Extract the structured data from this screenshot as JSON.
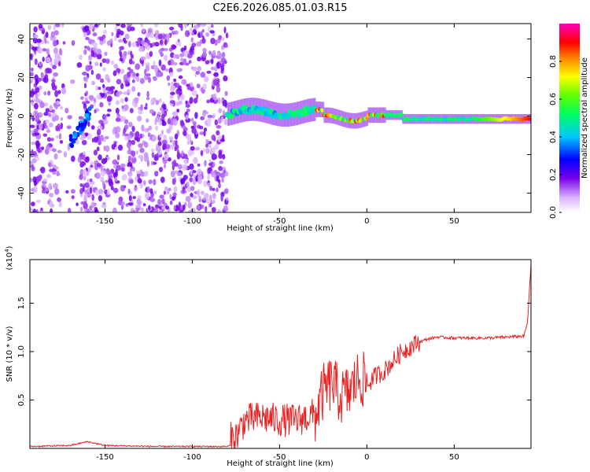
{
  "chart_data": [
    {
      "type": "heatmap",
      "title": "C2E6.2026.085.01.03.R15",
      "xlabel": "Height of straight line (km)",
      "ylabel": "Frequency (Hz)",
      "xlim": [
        -193,
        94
      ],
      "ylim": [
        -50,
        48
      ],
      "xticks": [
        -150,
        -100,
        -50,
        0,
        50
      ],
      "yticks": [
        -40,
        -20,
        0,
        20,
        40
      ],
      "colorbar": {
        "label": "Normalized spectral amplitude",
        "range": [
          0,
          1
        ],
        "ticks": [
          "0.0",
          "0.2",
          "0.4",
          "0.6",
          "0.8"
        ],
        "tick_values": [
          0.0,
          0.2,
          0.4,
          0.6,
          0.8
        ]
      },
      "ridge": {
        "description_points": [
          {
            "x": -168,
            "y": -13,
            "amp": 0.35
          },
          {
            "x": -160,
            "y": 2,
            "amp": 0.3
          },
          {
            "x": -75,
            "y": 2,
            "amp": 0.4
          },
          {
            "x": -50,
            "y": 3,
            "amp": 0.45
          },
          {
            "x": -25,
            "y": -2,
            "amp": 0.8
          },
          {
            "x": 0,
            "y": 1,
            "amp": 0.9
          },
          {
            "x": 10,
            "y": 0,
            "amp": 0.95
          },
          {
            "x": 50,
            "y": -2,
            "amp": 0.6
          },
          {
            "x": 90,
            "y": -2,
            "amp": 0.9
          }
        ]
      }
    },
    {
      "type": "line",
      "xlabel": "Height of straight line (km)",
      "ylabel": "SNR (10 * v/v)",
      "y_scale_label": "(x10",
      "y_scale_exp": "4",
      "y_scale_close": ")",
      "xlim": [
        -193,
        94
      ],
      "ylim": [
        0,
        1.95
      ],
      "xticks": [
        -150,
        -100,
        -50,
        0,
        50
      ],
      "yticks": [
        0.5,
        1.0,
        1.5
      ],
      "ytick_labels": [
        "0.5",
        "1.0",
        "1.5"
      ],
      "series": [
        {
          "name": "SNR",
          "color": "#e82020",
          "x": [
            -193,
            -170,
            -160,
            -150,
            -120,
            -100,
            -80,
            -75,
            -70,
            -60,
            -50,
            -40,
            -30,
            -25,
            -20,
            -15,
            -10,
            -5,
            0,
            5,
            10,
            15,
            20,
            25,
            30,
            35,
            40,
            50,
            60,
            70,
            80,
            90,
            92,
            94
          ],
          "y": [
            0.02,
            0.03,
            0.07,
            0.03,
            0.02,
            0.02,
            0.02,
            0.05,
            0.22,
            0.25,
            0.22,
            0.22,
            0.28,
            0.55,
            0.65,
            0.5,
            0.55,
            0.7,
            0.65,
            0.75,
            0.8,
            0.9,
            1.0,
            1.05,
            1.1,
            1.13,
            1.15,
            1.14,
            1.14,
            1.14,
            1.15,
            1.16,
            1.3,
            1.9
          ]
        }
      ]
    }
  ]
}
